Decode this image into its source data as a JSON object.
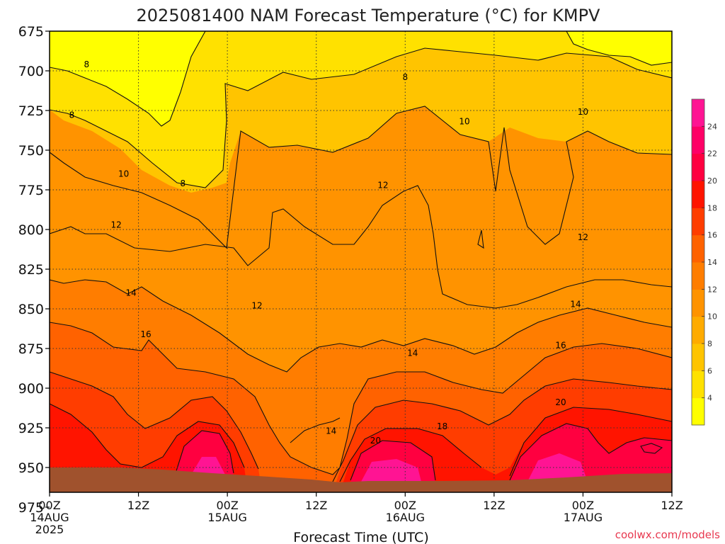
{
  "chart_data": {
    "type": "heatmap",
    "title": "2025081400 NAM Forecast Temperature (°C) for KMPV",
    "xlabel": "Forecast Time (UTC)",
    "ylabel": "",
    "credit": "coolwx.com/models",
    "y_ticks": [
      {
        "value": 675,
        "label": "675"
      },
      {
        "value": 700,
        "label": "700"
      },
      {
        "value": 725,
        "label": "725"
      },
      {
        "value": 750,
        "label": "750"
      },
      {
        "value": 775,
        "label": "775"
      },
      {
        "value": 800,
        "label": "800"
      },
      {
        "value": 825,
        "label": "825"
      },
      {
        "value": 850,
        "label": "850"
      },
      {
        "value": 875,
        "label": "875"
      },
      {
        "value": 900,
        "label": "900"
      },
      {
        "value": 925,
        "label": "925"
      },
      {
        "value": 950,
        "label": "950"
      },
      {
        "value": 975,
        "label": "975"
      }
    ],
    "ylim": [
      675,
      980
    ],
    "x_ticks": [
      {
        "hour": 0,
        "label": "00Z",
        "sub": [
          "14AUG",
          "2025"
        ]
      },
      {
        "hour": 12,
        "label": "12Z",
        "sub": []
      },
      {
        "hour": 24,
        "label": "00Z",
        "sub": [
          "15AUG"
        ]
      },
      {
        "hour": 36,
        "label": "12Z",
        "sub": []
      },
      {
        "hour": 48,
        "label": "00Z",
        "sub": [
          "16AUG"
        ]
      },
      {
        "hour": 60,
        "label": "12Z",
        "sub": []
      },
      {
        "hour": 72,
        "label": "00Z",
        "sub": [
          "17AUG"
        ]
      },
      {
        "hour": 84,
        "label": "12Z",
        "sub": []
      }
    ],
    "xlim": [
      0,
      84
    ],
    "colorbar": {
      "levels": [
        4,
        6,
        8,
        10,
        12,
        14,
        16,
        18,
        20,
        22,
        24
      ],
      "colors": [
        "#ffff00",
        "#ffe100",
        "#ffc400",
        "#ffab00",
        "#ff9300",
        "#ff7d00",
        "#ff6200",
        "#ff3d00",
        "#ff1400",
        "#ff0040",
        "#ff0066",
        "#ff1493"
      ]
    },
    "contour_labels": [
      {
        "hour": 5,
        "pressure": 696,
        "text": "8"
      },
      {
        "hour": 48,
        "pressure": 704,
        "text": "8"
      },
      {
        "hour": 3,
        "pressure": 728,
        "text": "8"
      },
      {
        "hour": 18,
        "pressure": 771,
        "text": "8"
      },
      {
        "hour": 56,
        "pressure": 732,
        "text": "10"
      },
      {
        "hour": 72,
        "pressure": 726,
        "text": "10"
      },
      {
        "hour": 10,
        "pressure": 765,
        "text": "10"
      },
      {
        "hour": 45,
        "pressure": 772,
        "text": "12"
      },
      {
        "hour": 9,
        "pressure": 797,
        "text": "12"
      },
      {
        "hour": 72,
        "pressure": 805,
        "text": "12"
      },
      {
        "hour": 28,
        "pressure": 848,
        "text": "12"
      },
      {
        "hour": 11,
        "pressure": 840,
        "text": "14"
      },
      {
        "hour": 71,
        "pressure": 847,
        "text": "14"
      },
      {
        "hour": 49,
        "pressure": 878,
        "text": "14"
      },
      {
        "hour": 38,
        "pressure": 927,
        "text": "14"
      },
      {
        "hour": 13,
        "pressure": 866,
        "text": "16"
      },
      {
        "hour": 69,
        "pressure": 873,
        "text": "16"
      },
      {
        "hour": 53,
        "pressure": 924,
        "text": "18"
      },
      {
        "hour": 69,
        "pressure": 909,
        "text": "20"
      },
      {
        "hour": 44,
        "pressure": 933,
        "text": "20"
      }
    ]
  }
}
